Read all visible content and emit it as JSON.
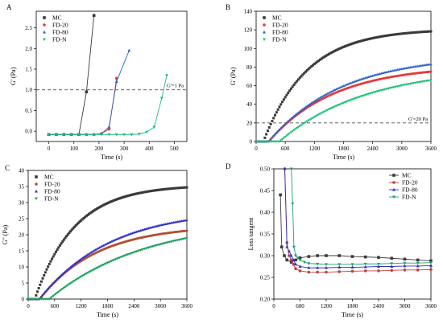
{
  "figure": {
    "panels": [
      "A",
      "B",
      "C",
      "D"
    ]
  },
  "chart_data": [
    {
      "panel": "A",
      "type": "line",
      "xlabel": "Time (s)",
      "ylabel": "G' (Pa)",
      "xlim": [
        -50,
        550
      ],
      "ylim": [
        -0.25,
        2.9
      ],
      "x_ticks": [
        0,
        100,
        200,
        300,
        400,
        500
      ],
      "y_ticks": [
        0.0,
        0.5,
        1.0,
        1.5,
        2.0,
        2.5
      ],
      "y_tick_labels": [
        "0.0",
        "0.5",
        "1.0",
        "1.5",
        "2.0",
        "2.5"
      ],
      "legend_position": "top-left",
      "reference_line": {
        "y": 1.0,
        "label": "G'=1 Pa"
      },
      "series": [
        {
          "name": "MC",
          "color": "#3a3a3a",
          "marker": "square",
          "x": [
            0,
            30,
            60,
            90,
            120,
            150,
            180
          ],
          "y": [
            -0.08,
            -0.08,
            -0.08,
            -0.08,
            -0.08,
            0.95,
            2.8
          ]
        },
        {
          "name": "FD-20",
          "color": "#e8393b",
          "marker": "circle",
          "x": [
            0,
            30,
            60,
            90,
            120,
            150,
            180,
            210,
            240,
            270
          ],
          "y": [
            -0.08,
            -0.08,
            -0.08,
            -0.08,
            -0.08,
            -0.08,
            -0.08,
            -0.06,
            0.05,
            1.28
          ]
        },
        {
          "name": "FD-80",
          "color": "#2a62c9",
          "marker": "triangle-up",
          "x": [
            0,
            30,
            60,
            90,
            120,
            150,
            180,
            210,
            240,
            270,
            320
          ],
          "y": [
            -0.08,
            -0.08,
            -0.08,
            -0.08,
            -0.08,
            -0.08,
            -0.08,
            -0.06,
            0.1,
            1.2,
            1.95
          ]
        },
        {
          "name": "FD-N",
          "color": "#1ec07a",
          "marker": "triangle-down",
          "x": [
            0,
            30,
            60,
            90,
            120,
            150,
            180,
            210,
            240,
            270,
            300,
            330,
            360,
            390,
            420,
            450,
            470
          ],
          "y": [
            -0.08,
            -0.08,
            -0.08,
            -0.08,
            -0.08,
            -0.08,
            -0.08,
            -0.08,
            -0.08,
            -0.08,
            -0.08,
            -0.08,
            -0.07,
            -0.02,
            0.1,
            0.8,
            1.35
          ]
        }
      ]
    },
    {
      "panel": "B",
      "type": "scatter",
      "xlabel": "Time (s)",
      "ylabel": "G' (Pa)",
      "xlim": [
        0,
        3600
      ],
      "ylim": [
        0,
        140
      ],
      "x_ticks": [
        0,
        600,
        1200,
        1800,
        2400,
        3000,
        3600
      ],
      "y_ticks": [
        0,
        20,
        40,
        60,
        80,
        100,
        120,
        140
      ],
      "legend_position": "top-left",
      "reference_line": {
        "y": 20,
        "label": "G'=20 Pa"
      },
      "series": [
        {
          "name": "MC",
          "color": "#3a3a3a",
          "marker": "square",
          "final": 121,
          "onset": 150,
          "tau": 900
        },
        {
          "name": "FD-20",
          "color": "#e8393b",
          "marker": "circle",
          "final": 82,
          "onset": 260,
          "tau": 1350
        },
        {
          "name": "FD-80",
          "color": "#2a62c9",
          "marker": "triangle-up",
          "final": 93,
          "onset": 260,
          "tau": 1500
        },
        {
          "name": "FD-N",
          "color": "#1ec07a",
          "marker": "triangle-down",
          "final": 80,
          "onset": 480,
          "tau": 1800
        }
      ]
    },
    {
      "panel": "C",
      "type": "scatter",
      "xlabel": "Time (s)",
      "ylabel": "G\" (Pa)",
      "xlim": [
        0,
        3600
      ],
      "ylim": [
        0,
        40
      ],
      "x_ticks": [
        0,
        600,
        1200,
        1800,
        2400,
        3000,
        3600
      ],
      "y_ticks": [
        0,
        5,
        10,
        15,
        20,
        25,
        30,
        35,
        40
      ],
      "legend_position": "top-left",
      "series": [
        {
          "name": "MC",
          "color": "#3a3a3a",
          "marker": "square",
          "final": 35.5,
          "onset": 150,
          "tau": 900
        },
        {
          "name": "FD-20",
          "color": "#b05030",
          "marker": "circle",
          "final": 23,
          "onset": 260,
          "tau": 1300
        },
        {
          "name": "FD-80",
          "color": "#3030d0",
          "marker": "triangle-up",
          "final": 28,
          "onset": 260,
          "tau": 1600
        },
        {
          "name": "FD-N",
          "color": "#20a060",
          "marker": "triangle-down",
          "final": 25,
          "onset": 480,
          "tau": 2200
        }
      ]
    },
    {
      "panel": "D",
      "type": "line",
      "xlabel": "Time (s)",
      "ylabel": "Loss tangent",
      "xlim": [
        0,
        3600
      ],
      "ylim": [
        0.2,
        0.5
      ],
      "x_ticks": [
        0,
        600,
        1200,
        1800,
        2400,
        3000,
        3600
      ],
      "y_ticks": [
        0.2,
        0.25,
        0.3,
        0.35,
        0.4,
        0.45,
        0.5
      ],
      "y_tick_labels": [
        "0.20",
        "0.25",
        "0.30",
        "0.35",
        "0.40",
        "0.45",
        "0.50"
      ],
      "legend_position": "top-right",
      "series": [
        {
          "name": "MC",
          "color": "#3a3a3a",
          "marker": "square",
          "x": [
            150,
            180,
            240,
            300,
            400,
            500,
            600,
            800,
            1000,
            1200,
            1500,
            1800,
            2100,
            2400,
            2700,
            3000,
            3300,
            3600
          ],
          "y": [
            0.44,
            0.32,
            0.3,
            0.29,
            0.285,
            0.29,
            0.295,
            0.298,
            0.3,
            0.3,
            0.3,
            0.298,
            0.297,
            0.296,
            0.294,
            0.292,
            0.29,
            0.288
          ]
        },
        {
          "name": "FD-20",
          "color": "#c04040",
          "marker": "circle",
          "x": [
            250,
            300,
            350,
            400,
            450,
            500,
            600,
            800,
            1000,
            1200,
            1500,
            1800,
            2100,
            2400,
            2700,
            3000,
            3300,
            3600
          ],
          "y": [
            0.5,
            0.33,
            0.3,
            0.29,
            0.28,
            0.27,
            0.265,
            0.262,
            0.262,
            0.262,
            0.263,
            0.264,
            0.265,
            0.265,
            0.266,
            0.267,
            0.267,
            0.268
          ]
        },
        {
          "name": "FD-80",
          "color": "#3030c0",
          "marker": "triangle-up",
          "x": [
            250,
            300,
            350,
            400,
            450,
            500,
            600,
            800,
            1000,
            1200,
            1500,
            1800,
            2100,
            2400,
            2700,
            3000,
            3300,
            3600
          ],
          "y": [
            0.5,
            0.32,
            0.31,
            0.3,
            0.29,
            0.28,
            0.275,
            0.272,
            0.272,
            0.272,
            0.273,
            0.273,
            0.274,
            0.275,
            0.275,
            0.276,
            0.276,
            0.277
          ]
        },
        {
          "name": "FD-N",
          "color": "#20a070",
          "marker": "triangle-down",
          "x": [
            400,
            430,
            460,
            500,
            550,
            600,
            700,
            800,
            1000,
            1200,
            1500,
            1800,
            2100,
            2400,
            2700,
            3000,
            3300,
            3600
          ],
          "y": [
            0.5,
            0.42,
            0.32,
            0.3,
            0.295,
            0.29,
            0.285,
            0.282,
            0.281,
            0.28,
            0.28,
            0.28,
            0.281,
            0.281,
            0.282,
            0.283,
            0.283,
            0.284
          ]
        }
      ]
    }
  ]
}
